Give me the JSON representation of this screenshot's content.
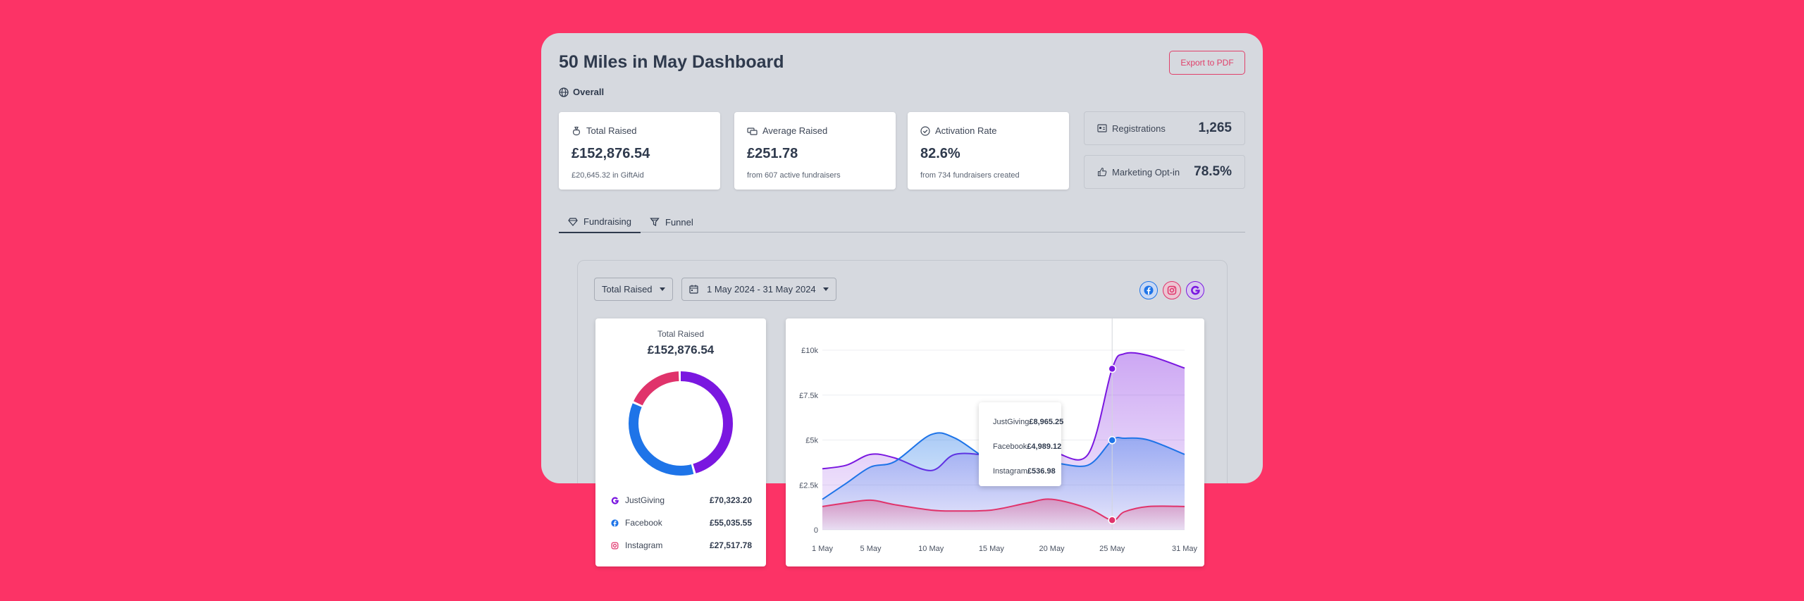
{
  "dashboard": {
    "title": "50 Miles in May Dashboard",
    "export_label": "Export to PDF",
    "scope_label": "Overall"
  },
  "stats": [
    {
      "label": "Total Raised",
      "value": "£152,876.54",
      "sub": "£20,645.32 in GiftAid",
      "icon": "money-bag-icon"
    },
    {
      "label": "Average Raised",
      "value": "£251.78",
      "sub": "from 607 active fundraisers",
      "icon": "coins-icon"
    },
    {
      "label": "Activation Rate",
      "value": "82.6%",
      "sub": "from 734 fundraisers created",
      "icon": "check-circle-icon"
    }
  ],
  "mini_stats": [
    {
      "label": "Registrations",
      "value": "1,265",
      "icon": "id-card-icon"
    },
    {
      "label": "Marketing Opt-in",
      "value": "78.5%",
      "icon": "thumbs-up-icon"
    }
  ],
  "tabs": [
    {
      "label": "Fundraising",
      "icon": "diamond-heart-icon",
      "active": true
    },
    {
      "label": "Funnel",
      "icon": "funnel-icon",
      "active": false
    }
  ],
  "filters": {
    "metric": "Total Raised",
    "date_range": "1 May 2024 - 31 May 2024"
  },
  "sources": [
    {
      "name": "Facebook",
      "icon": "facebook-icon",
      "color": "#1e74e8"
    },
    {
      "name": "Instagram",
      "icon": "instagram-icon",
      "color": "#e0336b"
    },
    {
      "name": "JustGiving",
      "icon": "justgiving-icon",
      "color": "#7a17e0"
    }
  ],
  "donut": {
    "label": "Total Raised",
    "total": "£152,876.54",
    "items": [
      {
        "name": "JustGiving",
        "value": 70323.2,
        "display": "£70,323.20",
        "color": "#7a17e0"
      },
      {
        "name": "Facebook",
        "value": 55035.55,
        "display": "£55,035.55",
        "color": "#1e74e8"
      },
      {
        "name": "Instagram",
        "value": 27517.78,
        "display": "£27,517.78",
        "color": "#e0336b"
      }
    ]
  },
  "chart_data": {
    "type": "area",
    "title": "",
    "x": [
      1,
      3,
      5,
      7,
      10,
      12,
      15,
      18,
      20,
      23,
      25,
      26,
      28,
      31
    ],
    "xticks": [
      1,
      5,
      10,
      15,
      20,
      25,
      31
    ],
    "xtick_labels": [
      "1 May",
      "5 May",
      "10 May",
      "15 May",
      "20 May",
      "25 May",
      "31 May"
    ],
    "yticks": [
      0,
      2500,
      5000,
      7500,
      10000
    ],
    "ytick_labels": [
      "0",
      "£2.5k",
      "£5k",
      "£7.5k",
      "£10k"
    ],
    "ylim": [
      0,
      10000
    ],
    "xlim": [
      1,
      31
    ],
    "series": [
      {
        "name": "JustGiving",
        "color": "#7a17e0",
        "values": [
          3400,
          3600,
          4200,
          4000,
          3300,
          4200,
          4100,
          3700,
          4300,
          4200,
          8965,
          9800,
          9700,
          9000
        ]
      },
      {
        "name": "Facebook",
        "color": "#1e74e8",
        "values": [
          1700,
          2600,
          3500,
          3800,
          5300,
          5100,
          3800,
          3200,
          3700,
          3600,
          4989,
          5100,
          5000,
          4200
        ]
      },
      {
        "name": "Instagram",
        "color": "#e0336b",
        "values": [
          1300,
          1500,
          1650,
          1400,
          1100,
          1050,
          1100,
          1500,
          1700,
          1200,
          537,
          1000,
          1300,
          1300
        ]
      }
    ],
    "hover_x": 25,
    "tooltip": [
      {
        "name": "JustGiving",
        "value": "£8,965.25",
        "color": "#7a17e0"
      },
      {
        "name": "Facebook",
        "value": "£4,989.12",
        "color": "#1e74e8"
      },
      {
        "name": "Instagram",
        "value": "£536.98",
        "color": "#e0336b"
      }
    ]
  }
}
